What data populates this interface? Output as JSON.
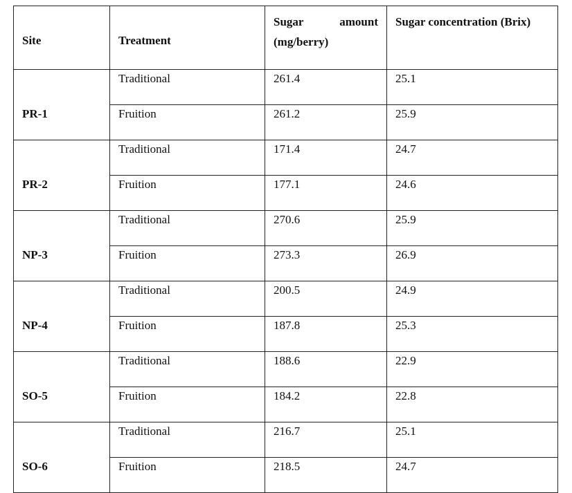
{
  "table": {
    "columns": [
      "Site",
      "Treatment",
      "Sugar amount (mg/berry)",
      "Sugar concentration (Brix)"
    ],
    "groups": [
      {
        "site": "PR-1",
        "rows": [
          {
            "treatment": "Traditional",
            "amount": 261.4,
            "brix": 25.1
          },
          {
            "treatment": "Fruition",
            "amount": 261.2,
            "brix": 25.9
          }
        ]
      },
      {
        "site": "PR-2",
        "rows": [
          {
            "treatment": "Traditional",
            "amount": 171.4,
            "brix": 24.7
          },
          {
            "treatment": "Fruition",
            "amount": 177.1,
            "brix": 24.6
          }
        ]
      },
      {
        "site": "NP-3",
        "rows": [
          {
            "treatment": "Traditional",
            "amount": 270.6,
            "brix": 25.9
          },
          {
            "treatment": "Fruition",
            "amount": 273.3,
            "brix": 26.9
          }
        ]
      },
      {
        "site": "NP-4",
        "rows": [
          {
            "treatment": "Traditional",
            "amount": 200.5,
            "brix": 24.9
          },
          {
            "treatment": "Fruition",
            "amount": 187.8,
            "brix": 25.3
          }
        ]
      },
      {
        "site": "SO-5",
        "rows": [
          {
            "treatment": "Traditional",
            "amount": 188.6,
            "brix": 22.9
          },
          {
            "treatment": "Fruition",
            "amount": 184.2,
            "brix": 22.8
          }
        ]
      },
      {
        "site": "SO-6",
        "rows": [
          {
            "treatment": "Traditional",
            "amount": 216.7,
            "brix": 25.1
          },
          {
            "treatment": "Fruition",
            "amount": 218.5,
            "brix": 24.7
          }
        ]
      }
    ]
  }
}
